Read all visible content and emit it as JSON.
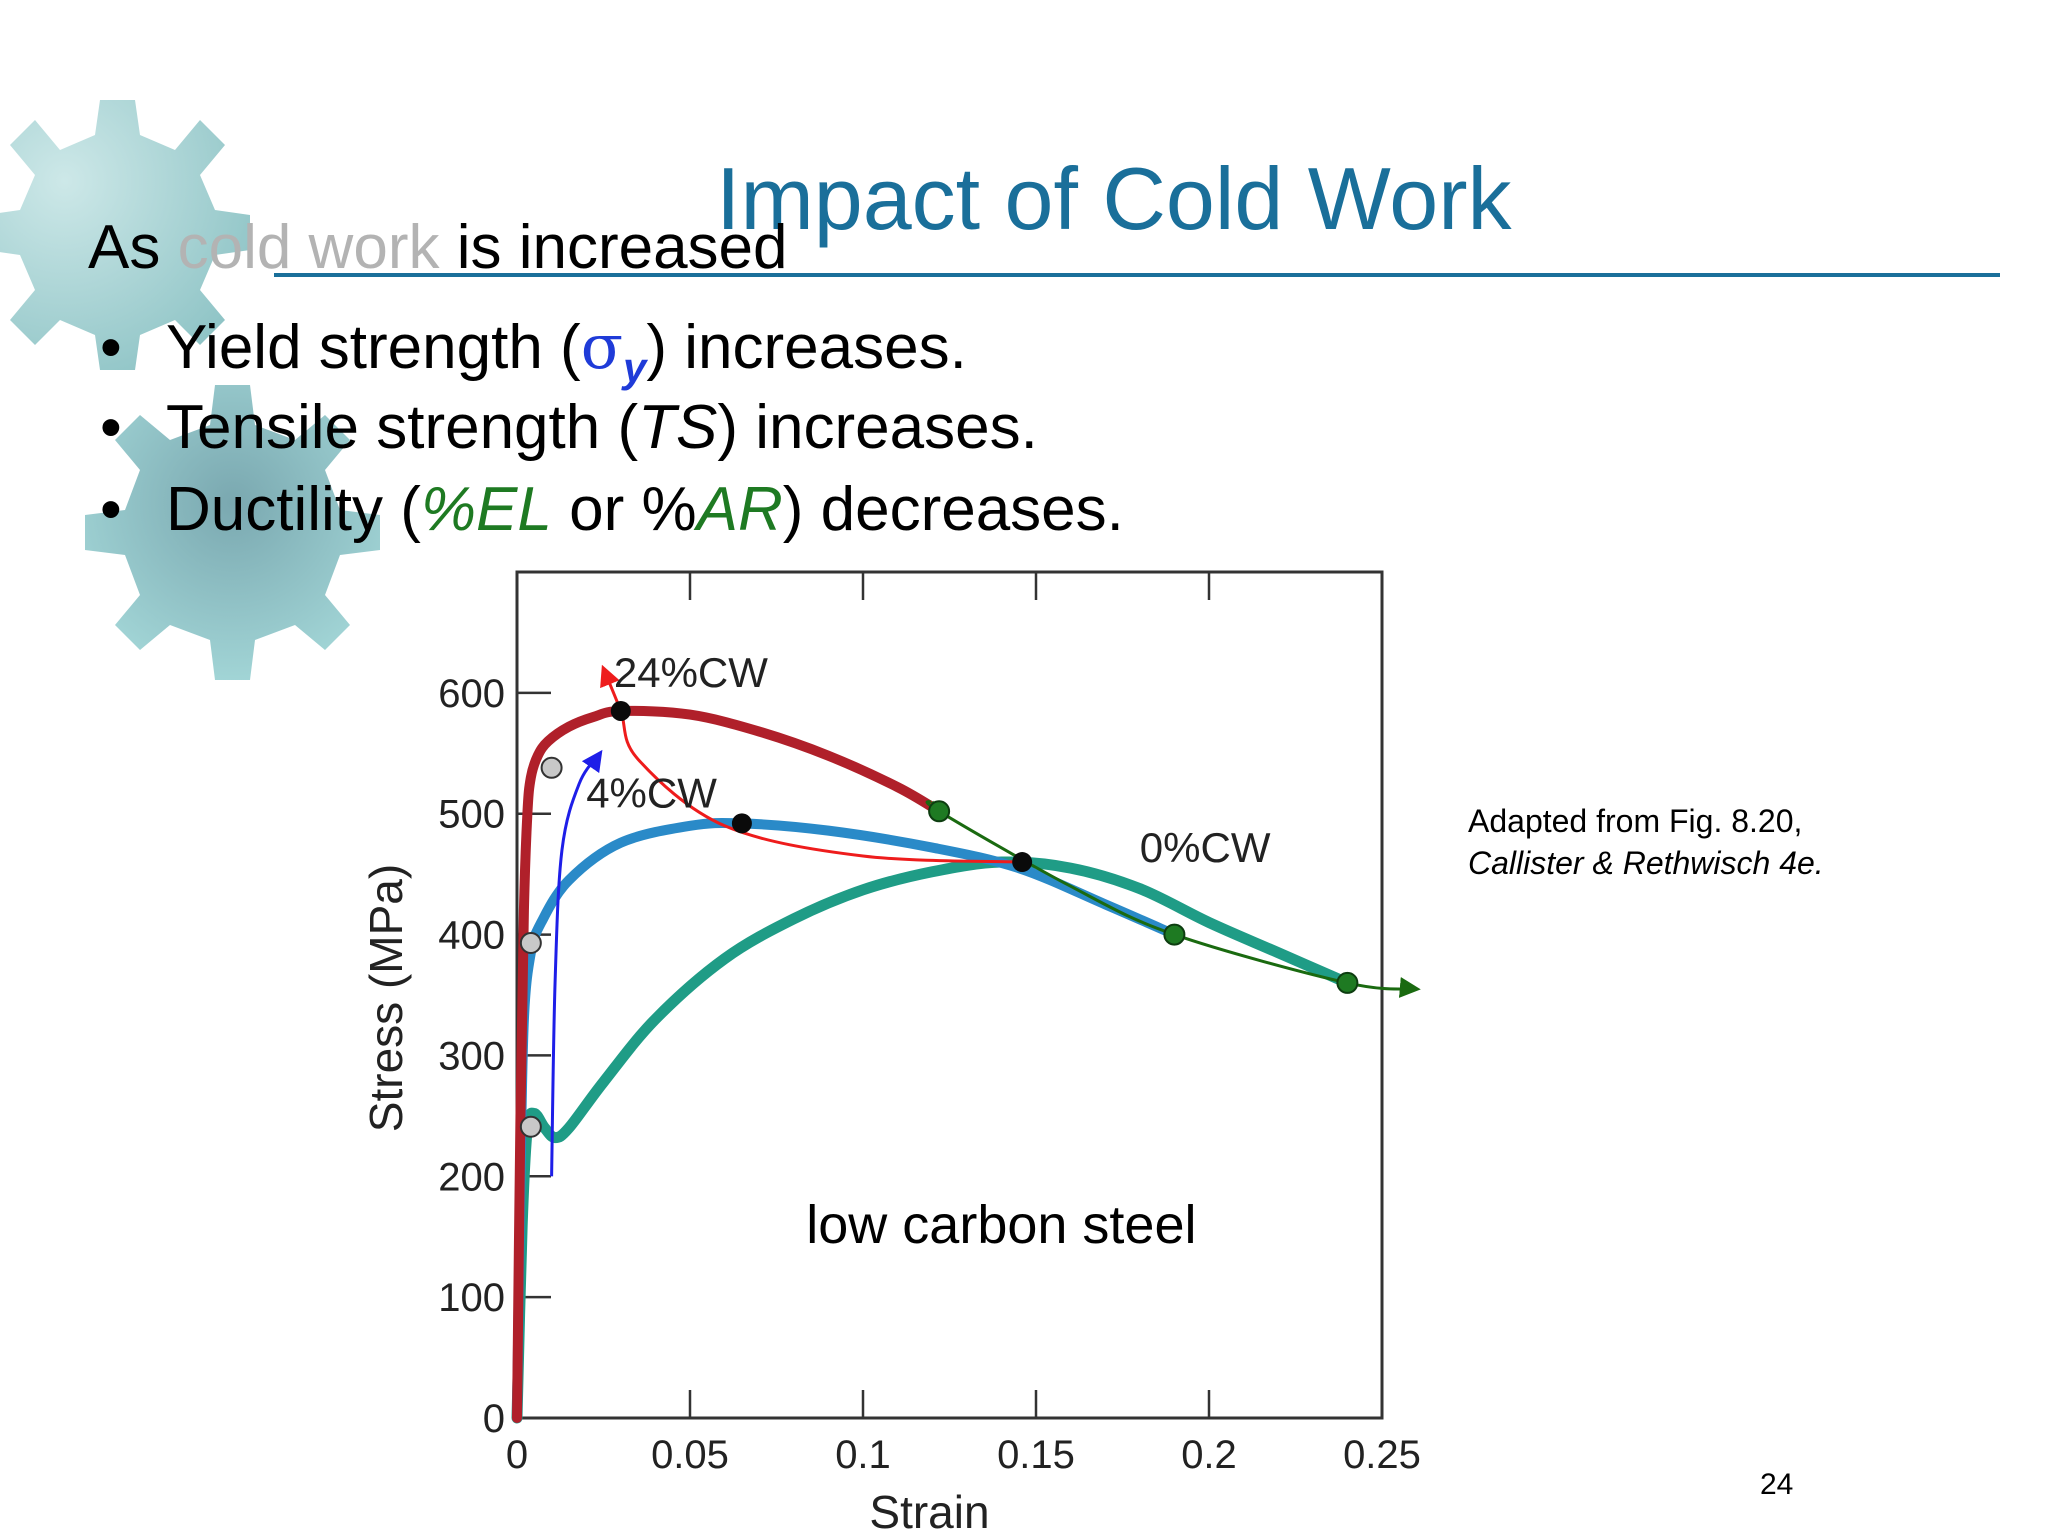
{
  "slide": {
    "title": "Impact of Cold Work",
    "lead_prefix": "As ",
    "lead_gray": "cold work",
    "lead_suffix": " is increased",
    "bullet_marker": "•",
    "bullets": [
      {
        "pre": "Yield strength (",
        "symbol": "σ",
        "subscript": "y",
        "post": ") increases."
      },
      {
        "pre": "Tensile strength (",
        "italic": "TS",
        "post": ") increases."
      },
      {
        "pre": "Ductility (",
        "g1": "%EL",
        "mid": " or %",
        "g2": "AR",
        "post": ") decreases."
      }
    ],
    "credit_line1": "Adapted from Fig. 8.20,",
    "credit_line2": "Callister & Rethwisch 4e.",
    "page_number": "24"
  },
  "colors": {
    "title": "#1a6f9a",
    "cw24": "#b0202a",
    "cw4": "#2a8ac8",
    "cw0": "#1f9c86",
    "trend_red": "#ee1c1c",
    "trend_blue": "#1e1ee8",
    "trend_green": "#1a6a10",
    "marker_gray": "#c8c8c8",
    "marker_black": "#0a0a0a",
    "marker_green": "#1e7a22",
    "gear": "#a9dadb"
  },
  "chart_data": {
    "type": "line",
    "xlabel": "Strain",
    "ylabel": "Stress (MPa)",
    "xlim": [
      0,
      0.25
    ],
    "ylim": [
      0,
      700
    ],
    "xticks": [
      0,
      0.05,
      0.1,
      0.15,
      0.2,
      0.25
    ],
    "xtick_labels": [
      "0",
      "0.05",
      "0.1",
      "0.15",
      "0.2",
      "0.25"
    ],
    "yticks": [
      0,
      100,
      200,
      300,
      400,
      500,
      600
    ],
    "ytick_labels": [
      "0",
      "100",
      "200",
      "300",
      "400",
      "500",
      "600"
    ],
    "grid": false,
    "annotation": "low carbon steel",
    "series": [
      {
        "name": "24%CW",
        "x": [
          0,
          0.001,
          0.002,
          0.003,
          0.004,
          0.006,
          0.009,
          0.015,
          0.022,
          0.03,
          0.05,
          0.07,
          0.09,
          0.11,
          0.122
        ],
        "y": [
          0,
          250,
          420,
          500,
          530,
          548,
          560,
          572,
          580,
          585,
          582,
          568,
          548,
          522,
          502
        ]
      },
      {
        "name": "4%CW",
        "x": [
          0,
          0.001,
          0.002,
          0.004,
          0.007,
          0.015,
          0.03,
          0.05,
          0.065,
          0.09,
          0.12,
          0.145,
          0.17,
          0.19
        ],
        "y": [
          0,
          200,
          330,
          385,
          410,
          445,
          476,
          490,
          492,
          486,
          472,
          455,
          425,
          400
        ]
      },
      {
        "name": "0%CW",
        "x": [
          0,
          0.0015,
          0.003,
          0.005,
          0.008,
          0.011,
          0.015,
          0.025,
          0.04,
          0.06,
          0.08,
          0.1,
          0.12,
          0.14,
          0.16,
          0.18,
          0.2,
          0.22,
          0.24
        ],
        "y": [
          0,
          160,
          240,
          252,
          240,
          232,
          240,
          278,
          330,
          380,
          413,
          437,
          452,
          460,
          455,
          438,
          410,
          385,
          360
        ]
      }
    ],
    "markers": {
      "yield_gray": [
        {
          "x": 0.01,
          "y": 538
        },
        {
          "x": 0.004,
          "y": 393
        },
        {
          "x": 0.004,
          "y": 241
        }
      ],
      "uts_black": [
        {
          "x": 0.03,
          "y": 585
        },
        {
          "x": 0.065,
          "y": 492
        },
        {
          "x": 0.146,
          "y": 460
        }
      ],
      "ductility_green": [
        {
          "x": 0.122,
          "y": 502
        },
        {
          "x": 0.19,
          "y": 400
        },
        {
          "x": 0.24,
          "y": 360
        }
      ]
    },
    "trend_arrows": {
      "uts_red": {
        "x": [
          0.146,
          0.1,
          0.06,
          0.035,
          0.03,
          0.025
        ],
        "y": [
          460,
          465,
          490,
          545,
          585,
          620
        ]
      },
      "yield_blue": {
        "x": [
          0.01,
          0.011,
          0.013,
          0.018,
          0.024
        ],
        "y": [
          200,
          360,
          470,
          525,
          550
        ]
      },
      "ductility_green": {
        "x": [
          0.12,
          0.122,
          0.16,
          0.19,
          0.24,
          0.26
        ],
        "y": [
          510,
          502,
          440,
          400,
          360,
          355
        ]
      }
    },
    "series_labels": [
      {
        "text": "24%CW",
        "x": 0.028,
        "y": 605
      },
      {
        "text": "4%CW",
        "x": 0.02,
        "y": 505
      },
      {
        "text": "0%CW",
        "x": 0.18,
        "y": 460
      }
    ]
  }
}
